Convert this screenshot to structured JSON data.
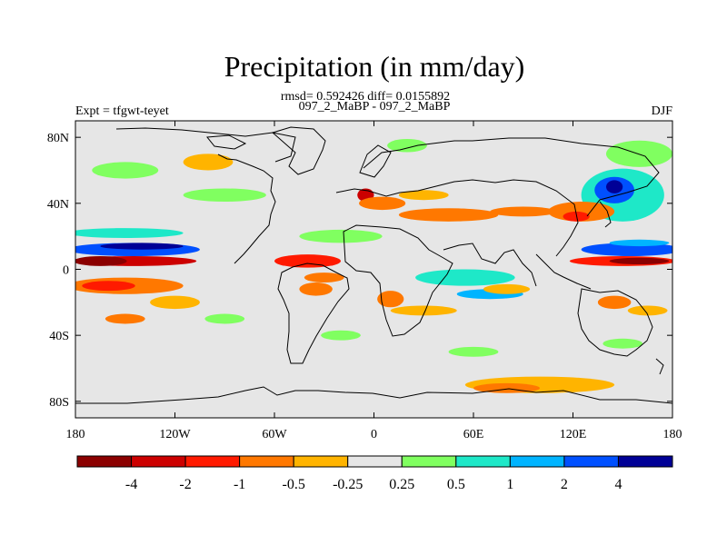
{
  "chart_data": {
    "type": "heatmap",
    "title": "Precipitation (in mm/day)",
    "subtitle_line1": "rmsd= 0.592426 diff= 0.0155892",
    "subtitle_line2": "097_2_MaBP - 097_2_MaBP",
    "left_label": "Expt = tfgwt-teyet",
    "right_label": "DJF",
    "x_ticks": [
      {
        "value": -180,
        "label": "180"
      },
      {
        "value": -120,
        "label": "120W"
      },
      {
        "value": -60,
        "label": "60W"
      },
      {
        "value": 0,
        "label": "0"
      },
      {
        "value": 60,
        "label": "60E"
      },
      {
        "value": 120,
        "label": "120E"
      },
      {
        "value": 180,
        "label": "180"
      }
    ],
    "y_ticks": [
      {
        "value": 80,
        "label": "80N"
      },
      {
        "value": 40,
        "label": "40N"
      },
      {
        "value": 0,
        "label": "0"
      },
      {
        "value": -40,
        "label": "40S"
      },
      {
        "value": -80,
        "label": "80S"
      }
    ],
    "xlim": [
      -180,
      180
    ],
    "ylim": [
      -90,
      90
    ],
    "colorbar": {
      "colors": [
        "#8b0000",
        "#cc0000",
        "#ff1a00",
        "#ff7800",
        "#ffb400",
        "#e6e6e6",
        "#80ff60",
        "#1ee8c8",
        "#00b4ff",
        "#0050ff",
        "#000096"
      ],
      "labels": [
        "-4",
        "-2",
        "-1",
        "-0.5",
        "-0.25",
        "0.25",
        "0.5",
        "1",
        "2",
        "4"
      ]
    },
    "background_color": "#e6e6e6",
    "regions": [
      {
        "lon": -145,
        "lat": 5,
        "rx": 38,
        "ry": 3,
        "level": 1
      },
      {
        "lon": -165,
        "lat": 5,
        "rx": 16,
        "ry": 3,
        "level": 0
      },
      {
        "lon": -145,
        "lat": 12,
        "rx": 40,
        "ry": 4,
        "level": 9
      },
      {
        "lon": -140,
        "lat": 14,
        "rx": 25,
        "ry": 2,
        "level": 10
      },
      {
        "lon": -150,
        "lat": 22,
        "rx": 35,
        "ry": 3,
        "level": 7
      },
      {
        "lon": -150,
        "lat": -10,
        "rx": 35,
        "ry": 5,
        "level": 3
      },
      {
        "lon": -160,
        "lat": -10,
        "rx": 16,
        "ry": 3,
        "level": 2
      },
      {
        "lon": 150,
        "lat": 5,
        "rx": 32,
        "ry": 3,
        "level": 2
      },
      {
        "lon": 160,
        "lat": 5,
        "rx": 18,
        "ry": 2,
        "level": 0
      },
      {
        "lon": 155,
        "lat": 12,
        "rx": 30,
        "ry": 4,
        "level": 9
      },
      {
        "lon": 160,
        "lat": 16,
        "rx": 18,
        "ry": 2,
        "level": 8
      },
      {
        "lon": 150,
        "lat": 45,
        "rx": 25,
        "ry": 16,
        "level": 7
      },
      {
        "lon": 145,
        "lat": 48,
        "rx": 12,
        "ry": 8,
        "level": 9
      },
      {
        "lon": 145,
        "lat": 50,
        "rx": 5,
        "ry": 4,
        "level": 10
      },
      {
        "lon": 160,
        "lat": 70,
        "rx": 20,
        "ry": 8,
        "level": 6
      },
      {
        "lon": 125,
        "lat": 35,
        "rx": 20,
        "ry": 6,
        "level": 3
      },
      {
        "lon": 122,
        "lat": 32,
        "rx": 8,
        "ry": 3,
        "level": 2
      },
      {
        "lon": -40,
        "lat": 5,
        "rx": 20,
        "ry": 4,
        "level": 2
      },
      {
        "lon": -30,
        "lat": -5,
        "rx": 12,
        "ry": 3,
        "level": 3
      },
      {
        "lon": -35,
        "lat": -12,
        "rx": 10,
        "ry": 4,
        "level": 3
      },
      {
        "lon": -20,
        "lat": 20,
        "rx": 25,
        "ry": 4,
        "level": 6
      },
      {
        "lon": -5,
        "lat": 45,
        "rx": 5,
        "ry": 4,
        "level": 1
      },
      {
        "lon": 5,
        "lat": 40,
        "rx": 14,
        "ry": 4,
        "level": 3
      },
      {
        "lon": 45,
        "lat": 33,
        "rx": 30,
        "ry": 4,
        "level": 3
      },
      {
        "lon": 90,
        "lat": 35,
        "rx": 20,
        "ry": 3,
        "level": 3
      },
      {
        "lon": 30,
        "lat": 45,
        "rx": 15,
        "ry": 3,
        "level": 4
      },
      {
        "lon": 55,
        "lat": -5,
        "rx": 30,
        "ry": 5,
        "level": 7
      },
      {
        "lon": 70,
        "lat": -15,
        "rx": 20,
        "ry": 3,
        "level": 8
      },
      {
        "lon": 30,
        "lat": -25,
        "rx": 20,
        "ry": 3,
        "level": 4
      },
      {
        "lon": 80,
        "lat": -12,
        "rx": 14,
        "ry": 3,
        "level": 4
      },
      {
        "lon": 10,
        "lat": -18,
        "rx": 8,
        "ry": 5,
        "level": 3
      },
      {
        "lon": -150,
        "lat": -30,
        "rx": 12,
        "ry": 3,
        "level": 3
      },
      {
        "lon": -120,
        "lat": -20,
        "rx": 15,
        "ry": 4,
        "level": 4
      },
      {
        "lon": -90,
        "lat": -30,
        "rx": 12,
        "ry": 3,
        "level": 6
      },
      {
        "lon": -150,
        "lat": 60,
        "rx": 20,
        "ry": 5,
        "level": 6
      },
      {
        "lon": -90,
        "lat": 45,
        "rx": 25,
        "ry": 4,
        "level": 6
      },
      {
        "lon": -100,
        "lat": 65,
        "rx": 15,
        "ry": 5,
        "level": 4
      },
      {
        "lon": 20,
        "lat": 75,
        "rx": 12,
        "ry": 4,
        "level": 6
      },
      {
        "lon": 100,
        "lat": -70,
        "rx": 45,
        "ry": 5,
        "level": 4
      },
      {
        "lon": 80,
        "lat": -72,
        "rx": 20,
        "ry": 3,
        "level": 3
      },
      {
        "lon": 145,
        "lat": -20,
        "rx": 10,
        "ry": 4,
        "level": 3
      },
      {
        "lon": 165,
        "lat": -25,
        "rx": 12,
        "ry": 3,
        "level": 4
      },
      {
        "lon": 150,
        "lat": -45,
        "rx": 12,
        "ry": 3,
        "level": 6
      },
      {
        "lon": -20,
        "lat": -40,
        "rx": 12,
        "ry": 3,
        "level": 6
      },
      {
        "lon": 60,
        "lat": -50,
        "rx": 15,
        "ry": 3,
        "level": 6
      }
    ]
  }
}
